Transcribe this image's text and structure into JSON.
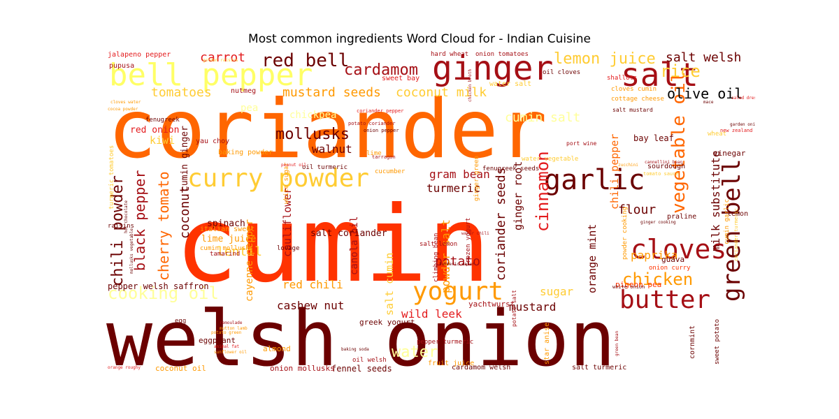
{
  "title": "Most common ingredients Word Cloud for - Indian Cuisine",
  "palette": [
    "#6b0000",
    "#a50f15",
    "#e31a1c",
    "#ff3300",
    "#ff6600",
    "#ff9900",
    "#ffcc33",
    "#ffff66"
  ],
  "words": [
    {
      "text": "cumin",
      "color": "#ff3300"
    },
    {
      "text": "coriander",
      "color": "#ff6600"
    },
    {
      "text": "welsh onion",
      "color": "#6b0000"
    },
    {
      "text": "bell pepper",
      "color": "#ffff66"
    },
    {
      "text": "ginger",
      "color": "#a50f15"
    },
    {
      "text": "salt",
      "color": "#a50f15"
    },
    {
      "text": "curry powder",
      "color": "#ffcc33"
    },
    {
      "text": "garlic",
      "color": "#6b0000"
    },
    {
      "text": "cloves",
      "color": "#a50f15"
    },
    {
      "text": "yogurt",
      "color": "#ff9900"
    },
    {
      "text": "butter",
      "color": "#a50f15"
    },
    {
      "text": "green bell",
      "color": "#6b0000"
    },
    {
      "text": "vegetable oil",
      "color": "#ff6600"
    },
    {
      "text": "red bell",
      "color": "#6b0000"
    },
    {
      "text": "cardamom",
      "color": "#a50f15"
    },
    {
      "text": "lemon juice",
      "color": "#ffcc33"
    },
    {
      "text": "rice",
      "color": "#ffcc33"
    },
    {
      "text": "salt welsh",
      "color": "#6b0000"
    },
    {
      "text": "olive oil",
      "color": "#000000"
    },
    {
      "text": "chicken",
      "color": "#ff9900"
    },
    {
      "text": "cinnamon",
      "color": "#e31a1c"
    },
    {
      "text": "chili powder",
      "color": "#6b0000"
    },
    {
      "text": "black pepper",
      "color": "#a50f15"
    },
    {
      "text": "cherry tomato",
      "color": "#ff6600"
    },
    {
      "text": "coconut",
      "color": "#6b0000"
    },
    {
      "text": "mollusks",
      "color": "#6b0000"
    },
    {
      "text": "cooking oil",
      "color": "#ffff99"
    },
    {
      "text": "mustard seeds",
      "color": "#ff9900"
    },
    {
      "text": "coconut milk",
      "color": "#ffcc33"
    },
    {
      "text": "cumin salt",
      "color": "#ffff99"
    },
    {
      "text": "tomatoes",
      "color": "#ffcc33"
    },
    {
      "text": "carrot",
      "color": "#e31a1c"
    },
    {
      "text": "potato",
      "color": "#a50f15"
    },
    {
      "text": "turmeric",
      "color": "#6b0000"
    },
    {
      "text": "gram bean",
      "color": "#a50f15"
    },
    {
      "text": "coriander seeds",
      "color": "#6b0000"
    },
    {
      "text": "milk substitute",
      "color": "#6b0000"
    },
    {
      "text": "paprika",
      "color": "#ff9900"
    },
    {
      "text": "flour",
      "color": "#6b0000"
    },
    {
      "text": "walnut",
      "color": "#6b0000"
    },
    {
      "text": "lentil",
      "color": "#ffcc33"
    },
    {
      "text": "red chili",
      "color": "#ff9900"
    },
    {
      "text": "wild leek",
      "color": "#e31a1c"
    },
    {
      "text": "cashew nut",
      "color": "#6b0000"
    },
    {
      "text": "sugar",
      "color": "#ffcc33"
    },
    {
      "text": "mustard",
      "color": "#6b0000"
    },
    {
      "text": "orange mint",
      "color": "#6b0000"
    },
    {
      "text": "chili pepper",
      "color": "#ff6600"
    },
    {
      "text": "cauliflower",
      "color": "#a50f15"
    },
    {
      "text": "salt cumin",
      "color": "#ffcc33"
    },
    {
      "text": "canola oil",
      "color": "#a50f15"
    },
    {
      "text": "powder salt",
      "color": "#ff9900"
    },
    {
      "text": "water",
      "color": "#ffff99"
    },
    {
      "text": "ginger root",
      "color": "#6b0000"
    },
    {
      "text": "salt coriander",
      "color": "#6b0000"
    },
    {
      "text": "cayenne pepper",
      "color": "#ff9900"
    },
    {
      "text": "spinach",
      "color": "#6b0000"
    },
    {
      "text": "lime juice",
      "color": "#ff9900"
    },
    {
      "text": "kiwi",
      "color": "#ffcc33"
    },
    {
      "text": "red onion",
      "color": "#e31a1c"
    },
    {
      "text": "chickpea",
      "color": "#ffff99"
    },
    {
      "text": "pea",
      "color": "#ffff99"
    },
    {
      "text": "bay leaf",
      "color": "#6b0000"
    },
    {
      "text": "vinegar",
      "color": "#6b0000"
    },
    {
      "text": "cumin ginger",
      "color": "#6b0000"
    },
    {
      "text": "pepper welsh",
      "color": "#6b0000"
    },
    {
      "text": "saffron",
      "color": "#6b0000"
    },
    {
      "text": "fennel seeds",
      "color": "#6b0000"
    },
    {
      "text": "coconut oil",
      "color": "#ff9900"
    },
    {
      "text": "onion mollusks",
      "color": "#a50f15"
    },
    {
      "text": "eggplant",
      "color": "#6b0000"
    },
    {
      "text": "almond",
      "color": "#ff9900"
    },
    {
      "text": "greek yogurt",
      "color": "#6b0000"
    },
    {
      "text": "yachtwurst",
      "color": "#a50f15"
    },
    {
      "text": "pigeon pea",
      "color": "#ff3300"
    },
    {
      "text": "guava",
      "color": "#6b0000"
    },
    {
      "text": "praline",
      "color": "#6b0000"
    },
    {
      "text": "lemon",
      "color": "#6b0000"
    },
    {
      "text": "sourdough",
      "color": "#6b0000"
    },
    {
      "text": "sweet bay",
      "color": "#e31a1c"
    },
    {
      "text": "water salt",
      "color": "#ffcc33"
    },
    {
      "text": "nutmeg",
      "color": "#a50f15"
    },
    {
      "text": "fenugreek",
      "color": "#6b0000"
    },
    {
      "text": "yau choy",
      "color": "#a50f15"
    },
    {
      "text": "baking powder",
      "color": "#ff9900"
    },
    {
      "text": "pupusa",
      "color": "#a50f15"
    },
    {
      "text": "jalapeno pepper",
      "color": "#e31a1c"
    },
    {
      "text": "hard wheat",
      "color": "#a50f15"
    },
    {
      "text": "onion tomatoes",
      "color": "#a50f15"
    },
    {
      "text": "oil cloves",
      "color": "#6b0000"
    },
    {
      "text": "shallots",
      "color": "#e31a1c"
    },
    {
      "text": "cottage cheese",
      "color": "#ff9900"
    },
    {
      "text": "cloves cumin",
      "color": "#ff9900"
    },
    {
      "text": "salt mustard",
      "color": "#6b0000"
    },
    {
      "text": "wheat",
      "color": "#ffcc33"
    },
    {
      "text": "oil turmeric",
      "color": "#6b0000"
    },
    {
      "text": "cucumber",
      "color": "#ff9900"
    },
    {
      "text": "lime",
      "color": "#ff9900"
    },
    {
      "text": "raisins",
      "color": "#6b0000"
    },
    {
      "text": "italian sweet",
      "color": "#ff9900"
    },
    {
      "text": "tamarind",
      "color": "#a50f15"
    },
    {
      "text": "lovage",
      "color": "#6b0000"
    },
    {
      "text": "climbing bean",
      "color": "#a50f15"
    },
    {
      "text": "frozen yogurt",
      "color": "#a50f15"
    },
    {
      "text": "salt lemon",
      "color": "#a50f15"
    },
    {
      "text": "pepper turmeric",
      "color": "#a50f15"
    },
    {
      "text": "fruit juice",
      "color": "#ff9900"
    },
    {
      "text": "cardamom welsh",
      "color": "#6b0000"
    },
    {
      "text": "star anise",
      "color": "#ff9900"
    },
    {
      "text": "salt turmeric",
      "color": "#6b0000"
    },
    {
      "text": "cornmint",
      "color": "#6b0000"
    },
    {
      "text": "sweet potato",
      "color": "#6b0000"
    },
    {
      "text": "onion curry",
      "color": "#ff3300"
    },
    {
      "text": "white onion",
      "color": "#6b0000"
    },
    {
      "text": "egg",
      "color": "#6b0000"
    },
    {
      "text": "oil welsh",
      "color": "#a50f15"
    },
    {
      "text": "turmeric tomatoes",
      "color": "#ffcc33"
    },
    {
      "text": "white sugar",
      "color": "#ff9900"
    },
    {
      "text": "ginger green",
      "color": "#ff9900"
    },
    {
      "text": "fenugreek seeds",
      "color": "#6b0000"
    },
    {
      "text": "water vegetable",
      "color": "#ffcc33"
    },
    {
      "text": "cumin garlic",
      "color": "#ff9900"
    },
    {
      "text": "powder cooking",
      "color": "#ff9900"
    },
    {
      "text": "potato salt",
      "color": "#a50f15"
    },
    {
      "text": "port wine",
      "color": "#a50f15"
    },
    {
      "text": "new zealand",
      "color": "#e31a1c"
    },
    {
      "text": "mace",
      "color": "#6b0000"
    },
    {
      "text": "salad dressing",
      "color": "#e31a1c"
    },
    {
      "text": "garden onion",
      "color": "#6b0000"
    },
    {
      "text": "tarragon",
      "color": "#a50f15"
    },
    {
      "text": "potato coriander",
      "color": "#a50f15"
    },
    {
      "text": "onion pepper",
      "color": "#6b0000"
    },
    {
      "text": "coriander pepper",
      "color": "#e31a1c"
    },
    {
      "text": "turmeric water",
      "color": "#6b0000"
    },
    {
      "text": "golden raisins",
      "color": "#ffcc33"
    },
    {
      "text": "cloves water",
      "color": "#ff9900"
    },
    {
      "text": "cocoa powder",
      "color": "#ff9900"
    },
    {
      "text": "orange roughy",
      "color": "#e31a1c"
    },
    {
      "text": "sunflower oil",
      "color": "#ff9900"
    },
    {
      "text": "animal fat",
      "color": "#e31a1c"
    },
    {
      "text": "potato green",
      "color": "#ff9900"
    },
    {
      "text": "mutton lamb",
      "color": "#ff9900"
    },
    {
      "text": "remoulade",
      "color": "#a50f15"
    },
    {
      "text": "green bean",
      "color": "#a50f15"
    },
    {
      "text": "ginger cooking",
      "color": "#6b0000"
    },
    {
      "text": "cannellini bean",
      "color": "#a50f15"
    },
    {
      "text": "tomato sauce",
      "color": "#ffcc33"
    },
    {
      "text": "zucchini",
      "color": "#ff9900"
    },
    {
      "text": "peanut oil",
      "color": "#e31a1c"
    },
    {
      "text": "baking soda",
      "color": "#6b0000"
    },
    {
      "text": "hot chocolate",
      "color": "#6b0000"
    },
    {
      "text": "mollusks vegetable",
      "color": "#6b0000"
    },
    {
      "text": "water chili",
      "color": "#a50f15"
    },
    {
      "text": "chicken broth",
      "color": "#a50f15"
    },
    {
      "text": "cumin mollusks",
      "color": "#ff9900"
    },
    {
      "text": "coriander turmeric",
      "color": "#ffcc33"
    }
  ]
}
